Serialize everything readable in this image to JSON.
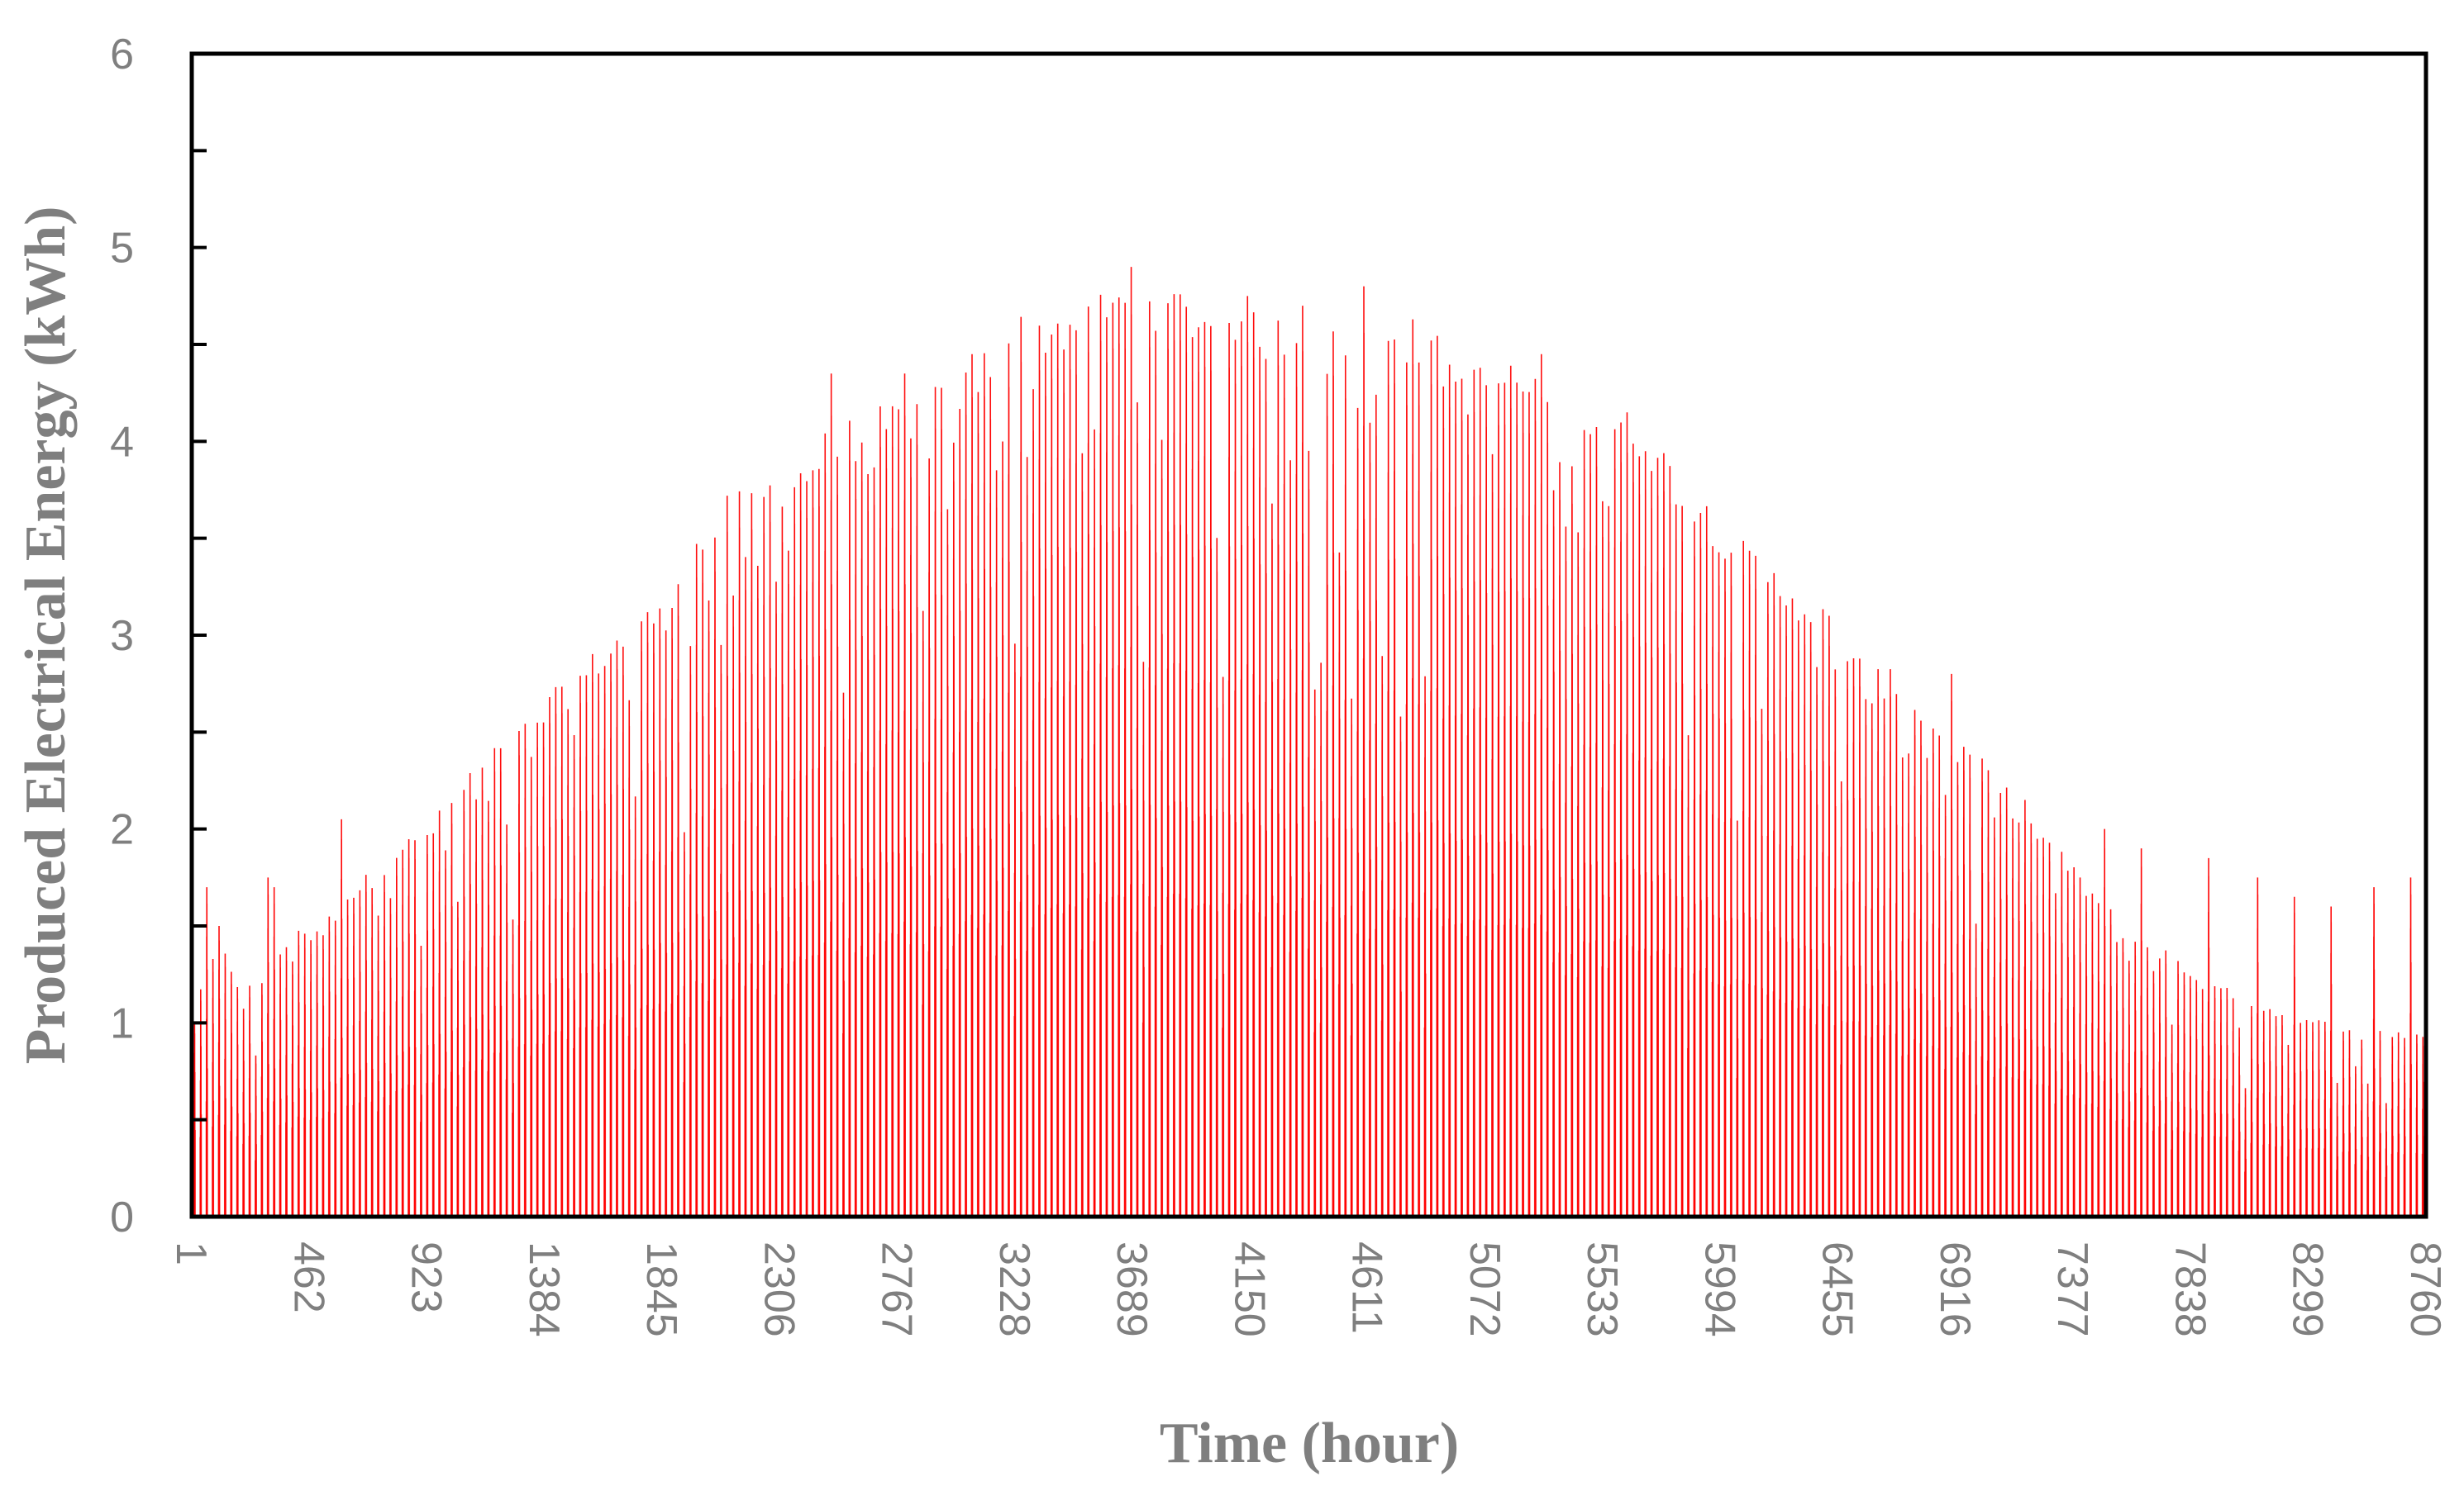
{
  "chart_data": {
    "type": "bar",
    "title": "",
    "xlabel": "Time (hour)",
    "ylabel": "Produced Electrical Energy (kWh)",
    "xlim": [
      1,
      8760
    ],
    "ylim": [
      0,
      6
    ],
    "x_ticks": [
      1,
      462,
      923,
      1384,
      1845,
      2306,
      2767,
      3228,
      3689,
      4150,
      4611,
      5072,
      5533,
      5994,
      6455,
      6916,
      7377,
      7838,
      8299,
      8760
    ],
    "y_ticks": [
      0,
      1,
      2,
      3,
      4,
      5,
      6
    ],
    "y_minor_step": 0.5,
    "grid": false,
    "legend": false,
    "series_color": "#ff0000",
    "series": [
      {
        "daily_peak_envelope": {
          "hour": [
            1,
            100,
            200,
            300,
            400,
            500,
            600,
            700,
            800,
            900,
            1000,
            1100,
            1200,
            1300,
            1400,
            1500,
            1600,
            1700,
            1800,
            1900,
            2000,
            2100,
            2200,
            2300,
            2400,
            2500,
            2600,
            2700,
            2800,
            2900,
            3000,
            3100,
            3200,
            3300,
            3400,
            3500,
            3600,
            3700,
            3800,
            3900,
            4000,
            4100,
            4200,
            4300,
            4400,
            4500,
            4600,
            4700,
            4800,
            4900,
            5000,
            5100,
            5200,
            5300,
            5400,
            5500,
            5600,
            5700,
            5800,
            5900,
            6000,
            6100,
            6200,
            6300,
            6400,
            6500,
            6600,
            6700,
            6800,
            6900,
            7000,
            7100,
            7200,
            7300,
            7400,
            7500,
            7600,
            7700,
            7800,
            7900,
            8000,
            8100,
            8200,
            8300,
            8400,
            8500,
            8600,
            8700,
            8760
          ],
          "kwh": [
            0.95,
            1.5,
            1.15,
            1.25,
            1.5,
            1.45,
            1.65,
            1.75,
            1.9,
            1.95,
            2.1,
            2.3,
            2.4,
            2.5,
            2.65,
            2.75,
            2.9,
            3.0,
            3.1,
            3.3,
            3.5,
            3.65,
            3.7,
            3.8,
            3.85,
            4.0,
            4.05,
            4.1,
            4.15,
            4.2,
            4.25,
            4.4,
            4.55,
            4.6,
            4.62,
            4.65,
            4.7,
            4.8,
            4.75,
            4.7,
            4.65,
            4.7,
            4.6,
            4.55,
            4.5,
            4.5,
            4.55,
            4.6,
            4.55,
            4.45,
            4.3,
            4.35,
            4.35,
            4.2,
            4.15,
            4.15,
            4.1,
            4.05,
            3.85,
            3.7,
            3.55,
            3.4,
            3.3,
            3.2,
            3.1,
            2.95,
            2.8,
            2.75,
            2.6,
            2.45,
            2.35,
            2.2,
            2.05,
            1.9,
            1.75,
            1.6,
            1.45,
            1.4,
            1.3,
            1.2,
            1.15,
            1.1,
            1.05,
            1.0,
            1.0,
            0.98,
            0.95,
            0.95,
            0.95
          ]
        },
        "notable_spikes": {
          "hour": [
            60,
            120,
            300,
            330,
            580,
            1380,
            2520,
            2800,
            3050,
            3690,
            4150,
            4350,
            4600,
            5300,
            6900,
            7200,
            7500,
            7650,
            7900,
            8100,
            8250,
            8400,
            8550,
            8700
          ],
          "kwh": [
            1.7,
            1.5,
            1.75,
            1.7,
            2.05,
            2.55,
            4.35,
            4.35,
            4.45,
            4.9,
            4.75,
            4.7,
            4.8,
            4.45,
            2.8,
            2.15,
            2.0,
            1.9,
            1.85,
            1.75,
            1.65,
            1.6,
            1.7,
            1.75
          ]
        }
      }
    ]
  }
}
